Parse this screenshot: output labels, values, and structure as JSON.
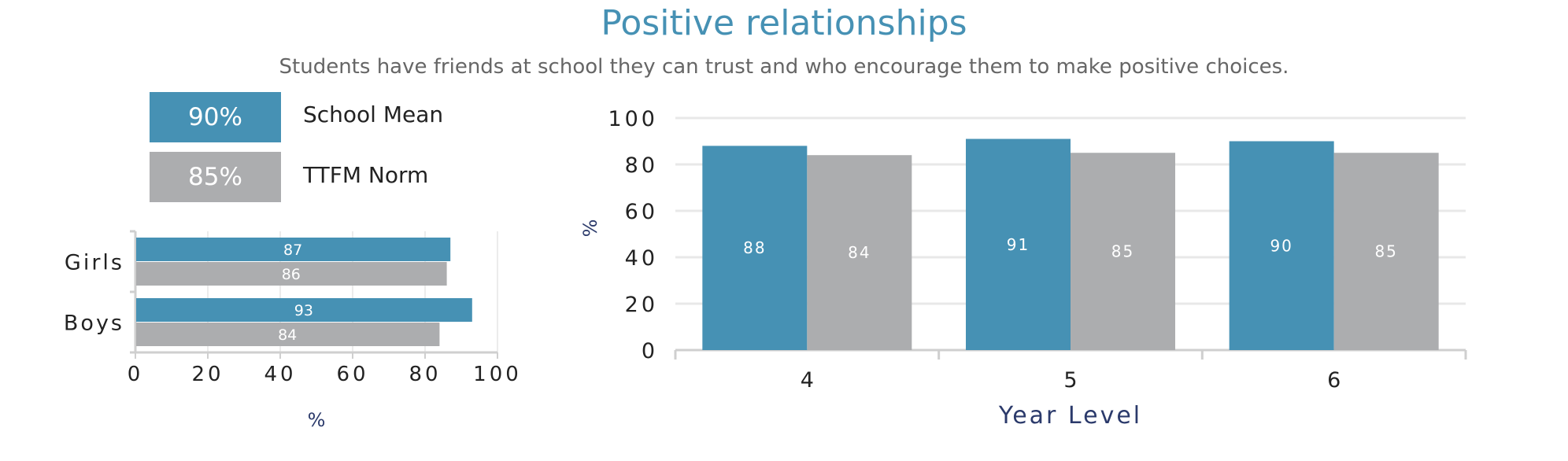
{
  "title": "Positive relationships",
  "subtitle": "Students have friends at school they can trust and who encourage them to make positive choices.",
  "kpis": [
    {
      "value": "90%",
      "label": "School Mean"
    },
    {
      "value": "85%",
      "label": "TTFM Norm"
    }
  ],
  "colors": {
    "school": "#4691b4",
    "norm": "#acadaf",
    "axis_title": "#2b3a6b",
    "title": "#4691b4"
  },
  "chart_data": [
    {
      "type": "bar",
      "orientation": "horizontal",
      "categories": [
        "Girls",
        "Boys"
      ],
      "series": [
        {
          "name": "School Mean",
          "values": [
            87,
            93
          ]
        },
        {
          "name": "TTFM Norm",
          "values": [
            86,
            84
          ]
        }
      ],
      "xlabel": "%",
      "xlim": [
        0,
        100
      ],
      "xticks": [
        "0",
        "20",
        "40",
        "60",
        "80",
        "100"
      ]
    },
    {
      "type": "bar",
      "orientation": "vertical",
      "categories": [
        "4",
        "5",
        "6"
      ],
      "series": [
        {
          "name": "School Mean",
          "values": [
            88,
            91,
            90
          ]
        },
        {
          "name": "TTFM Norm",
          "values": [
            84,
            85,
            85
          ]
        }
      ],
      "xlabel": "Year Level",
      "ylabel": "%",
      "ylim": [
        0,
        100
      ],
      "yticks": [
        "0",
        "20",
        "40",
        "60",
        "80",
        "100"
      ],
      "grid": true
    }
  ]
}
